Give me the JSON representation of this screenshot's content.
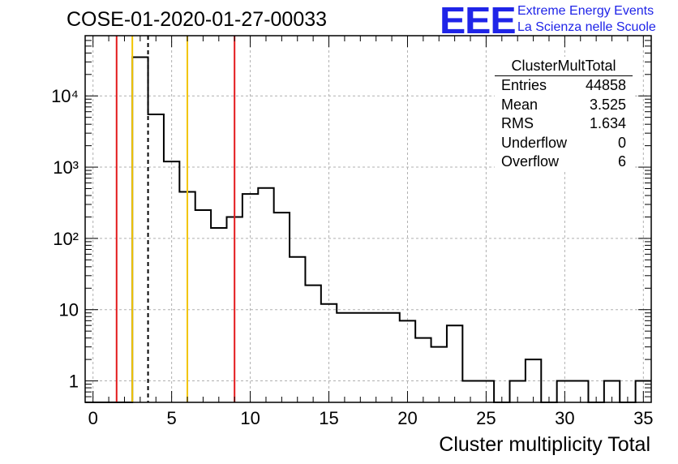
{
  "title": "COSE-01-2020-01-27-00033",
  "logo": {
    "mark": "EEE",
    "line1": "Extreme Energy Events",
    "line2": "La Scienza nelle Scuole"
  },
  "stats_box": {
    "title": "ClusterMultTotal",
    "rows": [
      {
        "label": "Entries",
        "value": "44858"
      },
      {
        "label": "Mean",
        "value": "3.525"
      },
      {
        "label": "RMS",
        "value": "1.634"
      },
      {
        "label": "Underflow",
        "value": "0"
      },
      {
        "label": "Overflow",
        "value": "6"
      }
    ]
  },
  "chart_data": {
    "type": "bar",
    "style": "step histogram",
    "title": "COSE-01-2020-01-27-00033",
    "xlabel": "Cluster multiplicity Total",
    "ylabel": "",
    "xlim": [
      -0.5,
      35.5
    ],
    "ylim": [
      0.5,
      70000
    ],
    "y_scale": "log",
    "grid": true,
    "bin_width": 1,
    "bin_centers": [
      0,
      1,
      2,
      3,
      4,
      5,
      6,
      7,
      8,
      9,
      10,
      11,
      12,
      13,
      14,
      15,
      16,
      17,
      18,
      19,
      20,
      21,
      22,
      23,
      24,
      25,
      26,
      27,
      28,
      29,
      30,
      31,
      32,
      33,
      34,
      35
    ],
    "values": [
      0,
      0,
      0,
      35000,
      5500,
      1200,
      450,
      250,
      140,
      200,
      420,
      510,
      230,
      55,
      22,
      12,
      9,
      9,
      9,
      9,
      7,
      4,
      3,
      6,
      1,
      1,
      0,
      1,
      2,
      0,
      1,
      1,
      0,
      1,
      0,
      1
    ],
    "x_ticks": [
      "0",
      "5",
      "10",
      "15",
      "20",
      "25",
      "30",
      "35"
    ],
    "y_ticks": [
      "1",
      "10",
      "10²",
      "10³",
      "10⁴"
    ],
    "y_tick_values": [
      1,
      10,
      100,
      1000,
      10000
    ],
    "vertical_lines": [
      {
        "x": 1.5,
        "color": "#e31a1c",
        "style": "solid"
      },
      {
        "x": 2.5,
        "color": "#f2c500",
        "style": "solid"
      },
      {
        "x": 3.5,
        "color": "#000000",
        "style": "dashed"
      },
      {
        "x": 6.0,
        "color": "#f2c500",
        "style": "solid"
      },
      {
        "x": 9.0,
        "color": "#e31a1c",
        "style": "solid"
      }
    ],
    "colors": {
      "histogram": "#000000",
      "grid": "#b0b0b0"
    }
  }
}
